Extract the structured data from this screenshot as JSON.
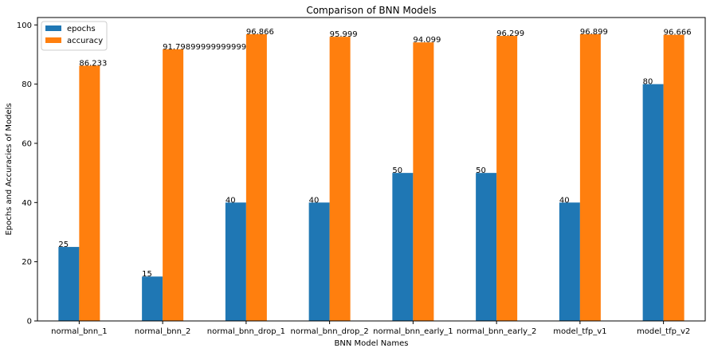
{
  "chart_data": {
    "type": "bar",
    "title": "Comparison of BNN Models",
    "xlabel": "BNN Model Names",
    "ylabel": "Epochs and Accuracies of Models",
    "ylim": [
      0,
      102.5
    ],
    "yticks": [
      "0",
      "20",
      "40",
      "60",
      "80",
      "100"
    ],
    "categories": [
      "normal_bnn_1",
      "normal_bnn_2",
      "normal_bnn_drop_1",
      "normal_bnn_drop_2",
      "normal_bnn_early_1",
      "normal_bnn_early_2",
      "model_tfp_v1",
      "model_tfp_v2"
    ],
    "series": [
      {
        "name": "epochs",
        "color": "#1f77b4",
        "values": [
          25,
          15,
          40,
          40,
          50,
          50,
          40,
          80
        ],
        "labels": [
          "25",
          "15",
          "40",
          "40",
          "50",
          "50",
          "40",
          "80"
        ]
      },
      {
        "name": "accuracy",
        "color": "#ff7f0e",
        "values": [
          86.233,
          91.79899999999999,
          96.866,
          95.999,
          94.099,
          96.299,
          96.899,
          96.666
        ],
        "labels": [
          "86.233",
          "91.79899999999999",
          "96.866",
          "95.999",
          "94.099",
          "96.299",
          "96.899",
          "96.666"
        ]
      }
    ],
    "legend_position": "top-left",
    "grid": false
  }
}
